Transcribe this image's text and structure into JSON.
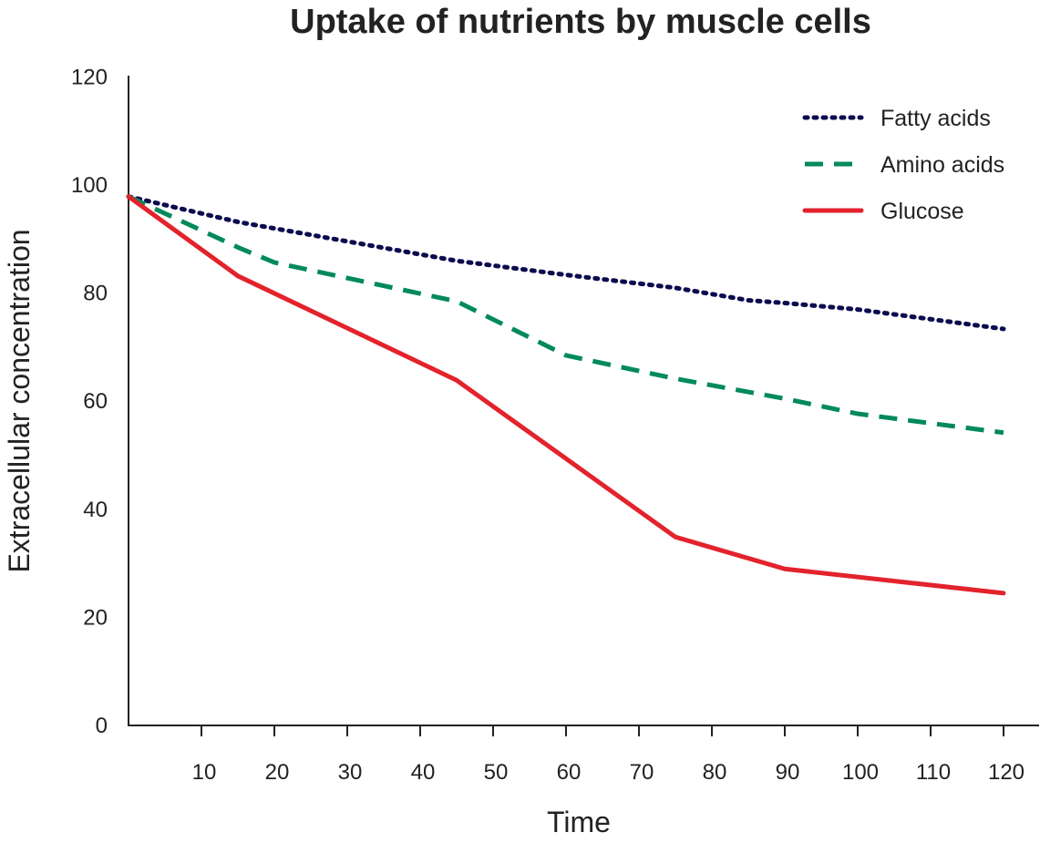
{
  "chart_data": {
    "type": "line",
    "title": "Uptake of nutrients by muscle cells",
    "xlabel": "Time",
    "ylabel": "Extracellular concentration",
    "xlim": [
      0,
      125
    ],
    "ylim": [
      0,
      120
    ],
    "xticks": [
      10,
      20,
      30,
      40,
      50,
      60,
      70,
      80,
      90,
      100,
      110,
      120
    ],
    "yticks": [
      0,
      20,
      40,
      60,
      80,
      100,
      120
    ],
    "grid": false,
    "legend_position": "top-right",
    "series": [
      {
        "name": "Fatty acids",
        "style": "dotted",
        "color": "#0b0b4f",
        "x": [
          0,
          15,
          45,
          60,
          75,
          85,
          90,
          100,
          120
        ],
        "y": [
          97.7,
          93,
          85.8,
          83.2,
          80.8,
          78.5,
          78,
          76.8,
          73.2
        ]
      },
      {
        "name": "Amino acids",
        "style": "dashed",
        "color": "#008a5a",
        "x": [
          0,
          15,
          20,
          45,
          60,
          75,
          90,
          100,
          120
        ],
        "y": [
          97.7,
          88.3,
          85.5,
          78.3,
          68.3,
          64,
          60.3,
          57.5,
          54
        ]
      },
      {
        "name": "Glucose",
        "style": "solid",
        "color": "#e3232c",
        "x": [
          0,
          15,
          45,
          75,
          90,
          120
        ],
        "y": [
          97.7,
          83,
          63.7,
          34.7,
          28.8,
          24.3
        ]
      }
    ]
  }
}
